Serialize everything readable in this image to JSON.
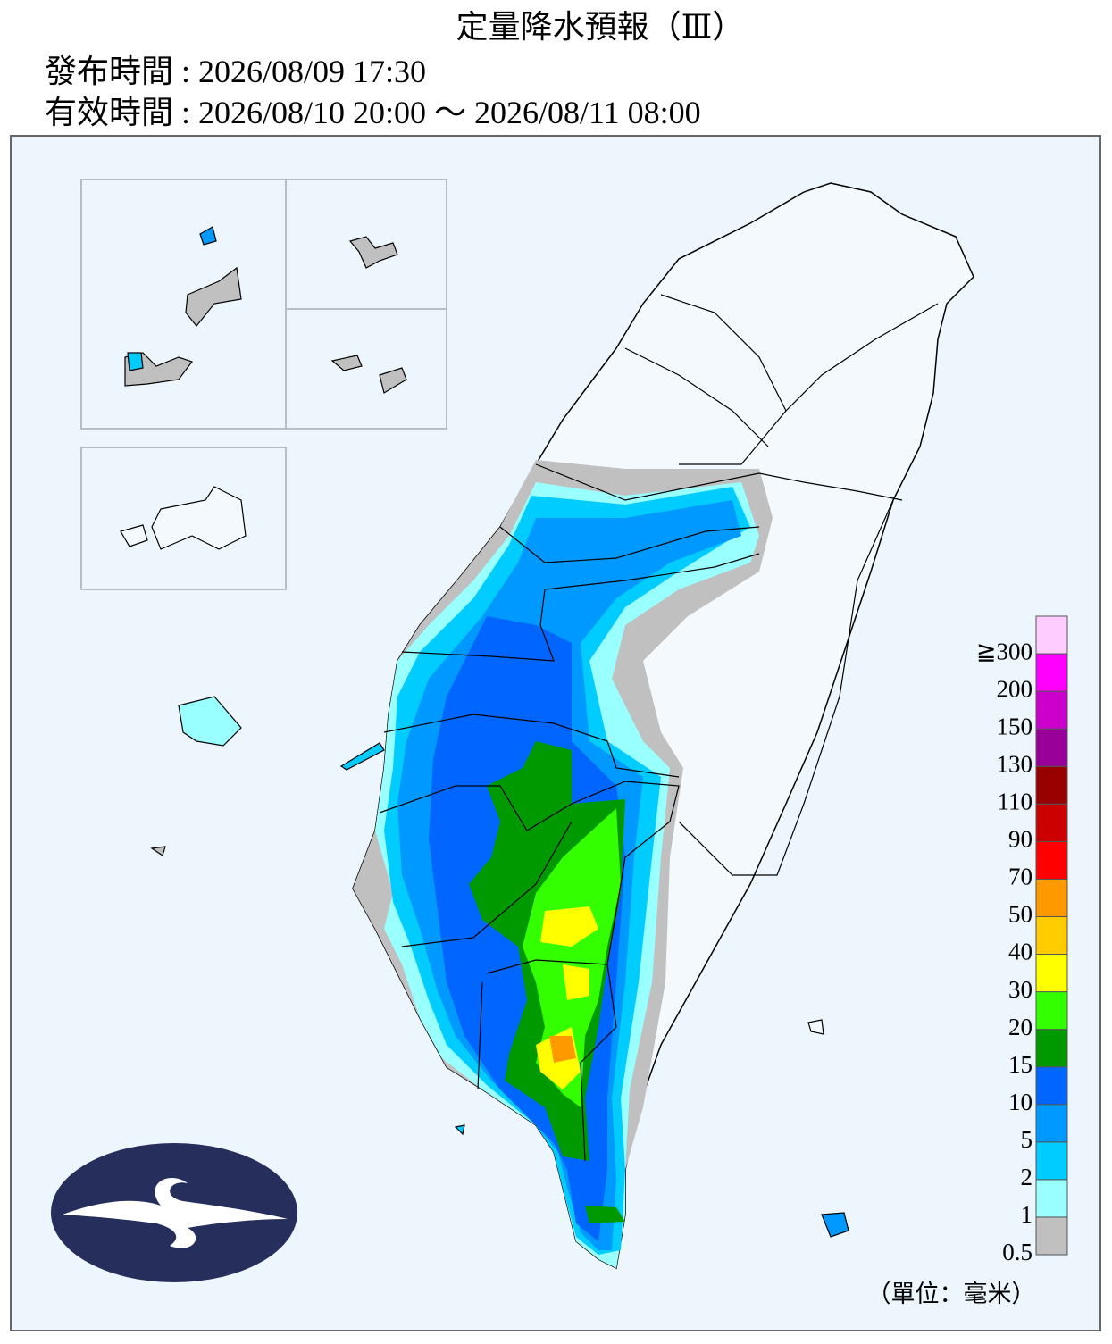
{
  "header": {
    "title": "定量降水預報（Ⅲ）",
    "issued": "發布時間 : 2026/08/09 17:30",
    "valid": "有效時間 : 2026/08/10 20:00 ～ 2026/08/11 08:00"
  },
  "legend": {
    "labels": [
      "0.5",
      "1",
      "2",
      "5",
      "10",
      "15",
      "20",
      "30",
      "40",
      "50",
      "70",
      "90",
      "110",
      "130",
      "150",
      "200",
      "≧300"
    ],
    "colors": [
      "#c0c0c0",
      "#99ffff",
      "#00ccff",
      "#0099ff",
      "#0066ff",
      "#009900",
      "#33ff00",
      "#ffff00",
      "#ffcc00",
      "#ff9900",
      "#ff0000",
      "#cc0000",
      "#990000",
      "#990099",
      "#cc00cc",
      "#ff00ff",
      "#ffccff"
    ],
    "unit": "（單位：毫米）"
  }
}
